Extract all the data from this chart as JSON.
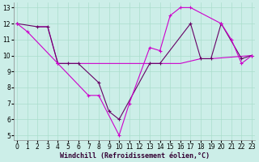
{
  "xlabel": "Windchill (Refroidissement éolien,°C)",
  "bg_color": "#cceee8",
  "grid_color": "#aaddcc",
  "color_line1": "#cc00cc",
  "color_line2": "#660066",
  "color_line3": "#cc00cc",
  "yticks": [
    5,
    6,
    7,
    8,
    9,
    10,
    11,
    12,
    13
  ],
  "xticks": [
    0,
    1,
    2,
    3,
    4,
    5,
    6,
    7,
    8,
    9,
    10,
    11,
    12,
    13,
    14,
    15,
    16,
    17,
    18,
    19,
    20,
    21,
    22,
    23
  ],
  "xlim": [
    -0.3,
    23.3
  ],
  "ylim": [
    4.7,
    13.3
  ],
  "line1_x": [
    0,
    1,
    4,
    7,
    8,
    10,
    11,
    13,
    14,
    15,
    16,
    17,
    20,
    21,
    22,
    23
  ],
  "line1_y": [
    12,
    11.5,
    9.5,
    7.5,
    7.5,
    5.0,
    7.0,
    10.5,
    10.3,
    12.5,
    13.0,
    13.0,
    12.0,
    11.0,
    9.5,
    10.0
  ],
  "line2_x": [
    0,
    2,
    3,
    4,
    5,
    6,
    8,
    9,
    10,
    13,
    14,
    17,
    18,
    19,
    20,
    22,
    23
  ],
  "line2_y": [
    12,
    11.8,
    11.8,
    9.5,
    9.5,
    9.5,
    8.3,
    6.5,
    6.0,
    9.5,
    9.5,
    12.0,
    9.8,
    9.8,
    12.0,
    9.8,
    10.0
  ],
  "line3_x": [
    2,
    3,
    4,
    5,
    6,
    12,
    13,
    14,
    15,
    16,
    18,
    19,
    23
  ],
  "line3_y": [
    11.8,
    11.8,
    9.5,
    9.5,
    9.5,
    9.5,
    9.5,
    9.5,
    9.5,
    9.5,
    9.8,
    9.8,
    10.0
  ],
  "xlabel_color": "#330033",
  "xlabel_fontsize": 6.0,
  "tick_fontsize": 5.5
}
